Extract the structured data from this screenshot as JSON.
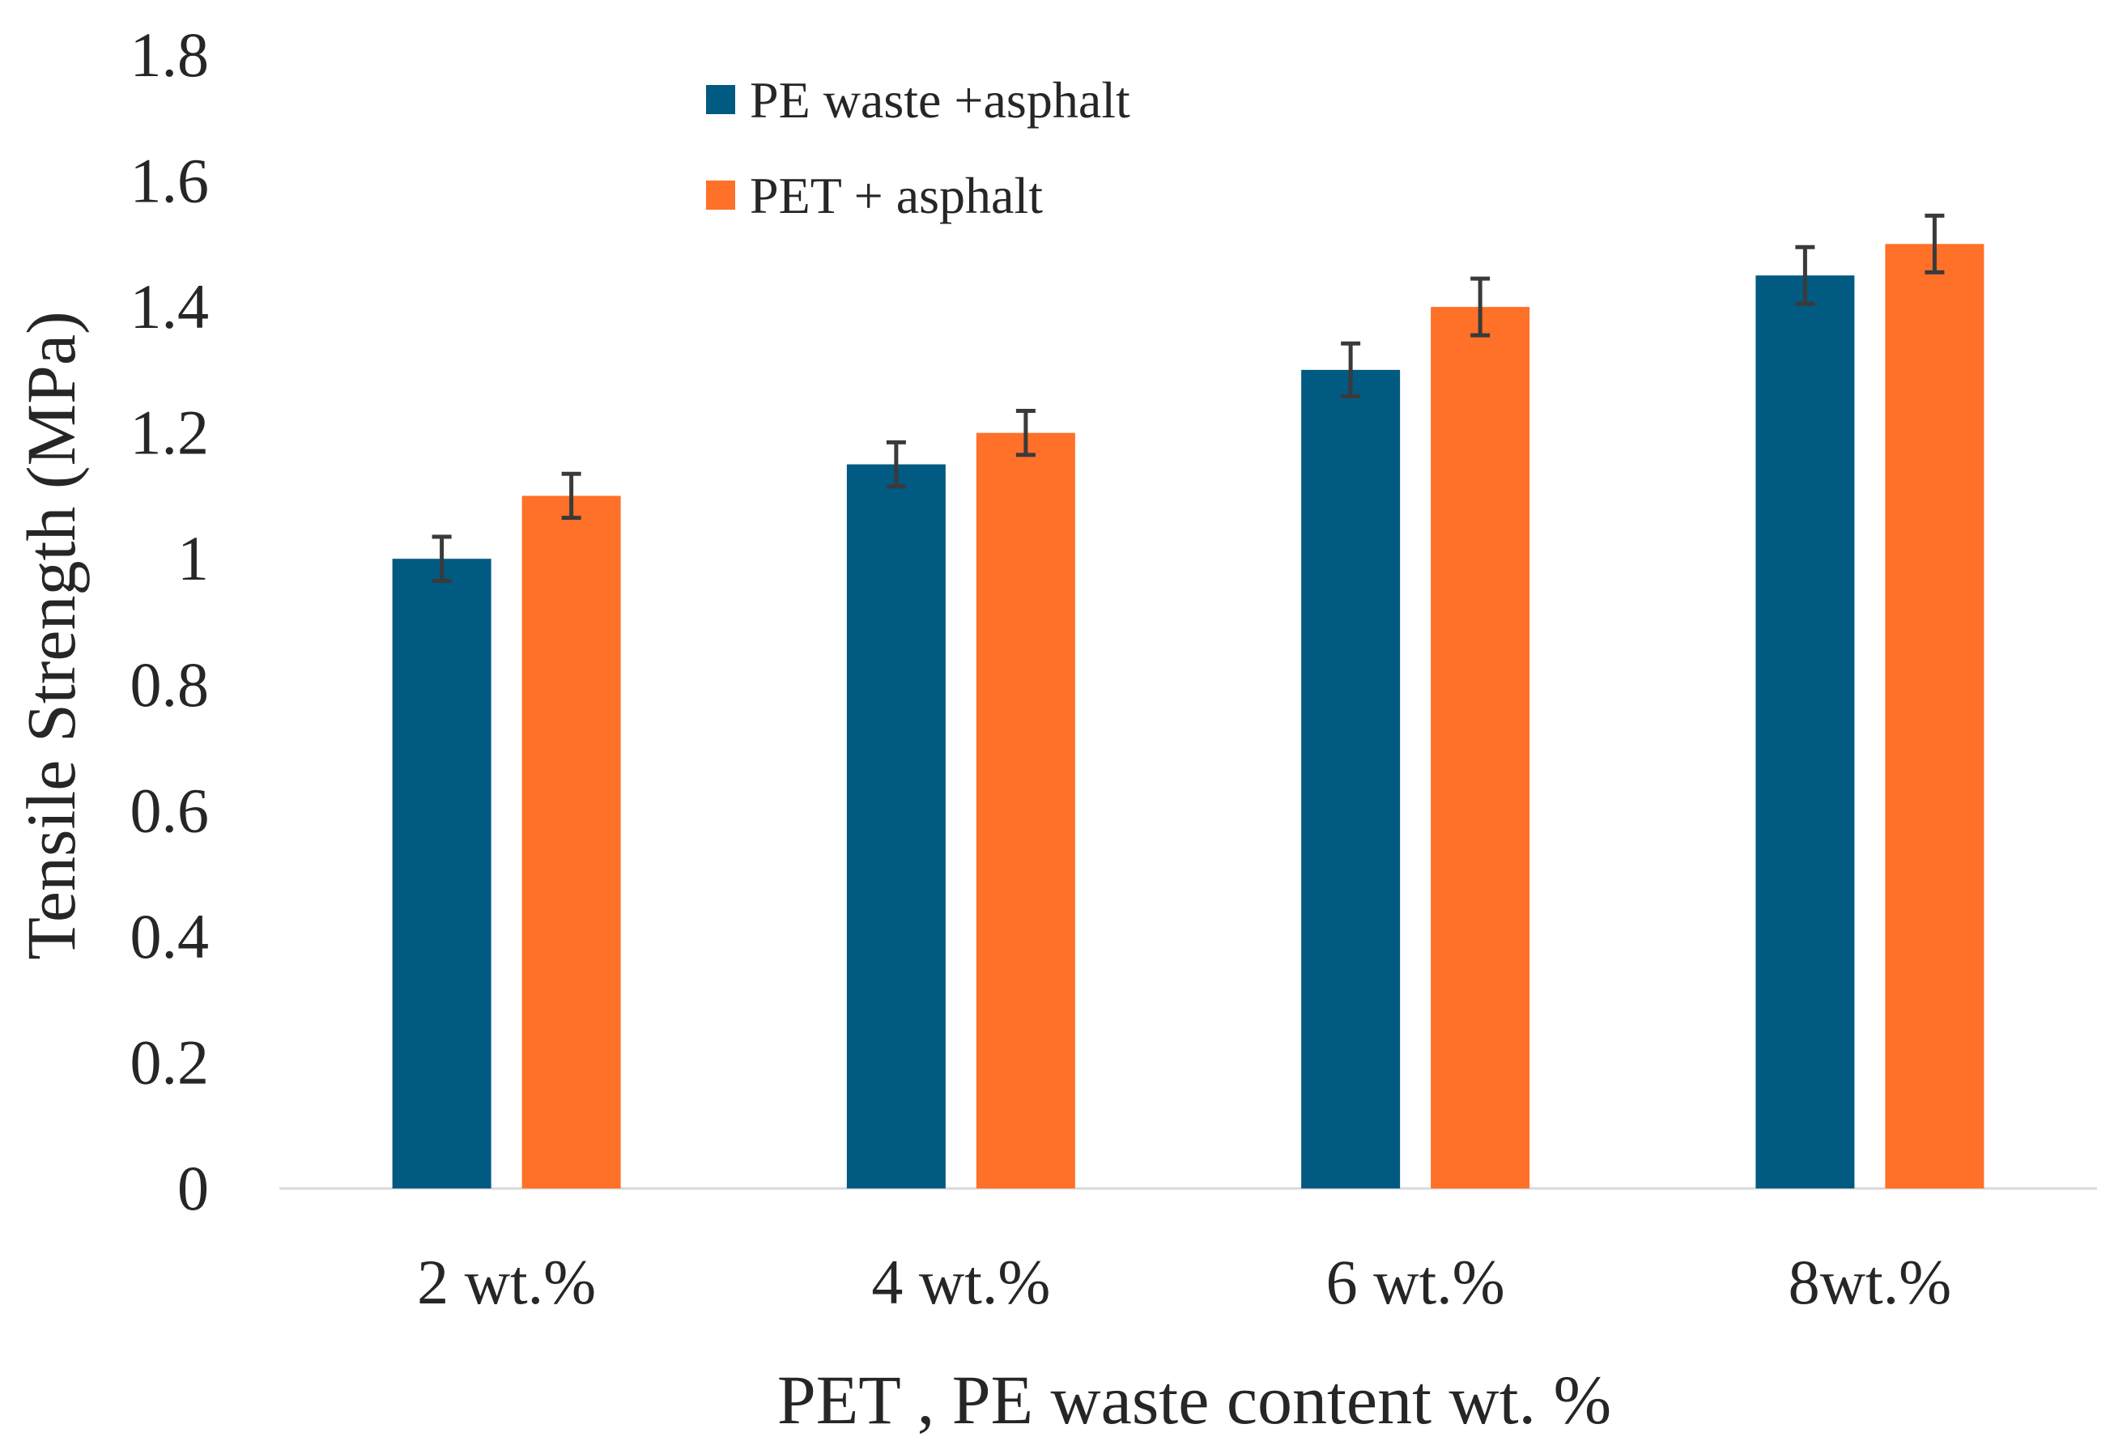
{
  "chart_data": {
    "type": "bar",
    "title": "",
    "xlabel": "PET , PE waste content wt. %",
    "ylabel": "Tensile Strength (MPa)",
    "categories": [
      "2 wt.%",
      "4 wt.%",
      "6 wt.%",
      "8wt.%"
    ],
    "ylim": [
      0,
      1.8
    ],
    "yticks": [
      0,
      0.2,
      0.4,
      0.6,
      0.8,
      1,
      1.2,
      1.4,
      1.6,
      1.8
    ],
    "ytick_labels": [
      "0",
      "0.2",
      "0.4",
      "0.6",
      "0.8",
      "1",
      "1.2",
      "1.4",
      "1.6",
      "1.8"
    ],
    "grid": false,
    "legend_position": "top-center",
    "series": [
      {
        "name": "PE waste +asphalt",
        "color": "#005a82",
        "values": [
          1.0,
          1.15,
          1.3,
          1.45
        ],
        "errors": [
          0.035,
          0.035,
          0.042,
          0.045
        ]
      },
      {
        "name": "PET + asphalt",
        "color": "#ff7029",
        "values": [
          1.1,
          1.2,
          1.4,
          1.5
        ],
        "errors": [
          0.035,
          0.035,
          0.045,
          0.045
        ]
      }
    ]
  }
}
